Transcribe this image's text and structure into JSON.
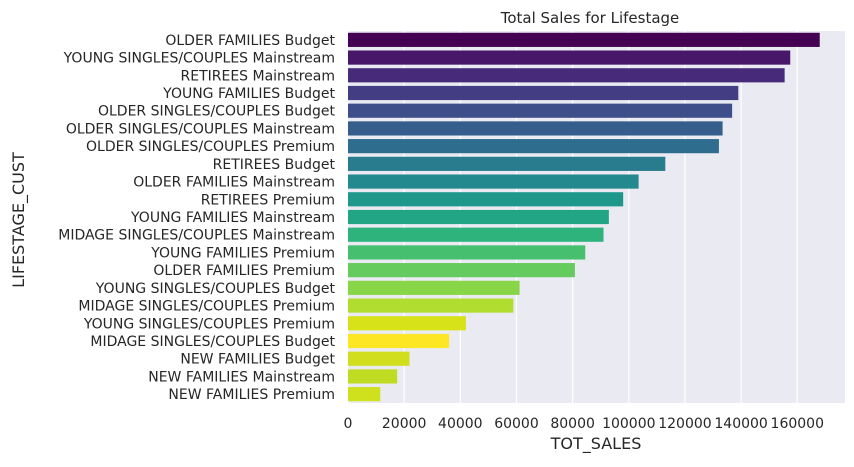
{
  "chart_data": {
    "type": "bar",
    "orientation": "horizontal",
    "title": "Total Sales for Lifestage",
    "xlabel": "TOT_SALES",
    "ylabel": "LIFESTAGE_CUST",
    "xlim": [
      0,
      177000
    ],
    "xticks": [
      0,
      20000,
      40000,
      60000,
      80000,
      100000,
      120000,
      140000,
      160000
    ],
    "grid": true,
    "background": "#eaeaf2",
    "categories": [
      "OLDER FAMILIES Budget",
      "YOUNG SINGLES/COUPLES Mainstream",
      "RETIREES Mainstream",
      "YOUNG FAMILIES Budget",
      "OLDER SINGLES/COUPLES Budget",
      "OLDER SINGLES/COUPLES Mainstream",
      "OLDER SINGLES/COUPLES Premium",
      "RETIREES Budget",
      "OLDER FAMILIES Mainstream",
      "RETIREES Premium",
      "YOUNG FAMILIES Mainstream",
      "MIDAGE SINGLES/COUPLES Mainstream",
      "YOUNG FAMILIES Premium",
      "OLDER FAMILIES Premium",
      "YOUNG SINGLES/COUPLES Budget",
      "MIDAGE SINGLES/COUPLES Premium",
      "YOUNG SINGLES/COUPLES Premium",
      "MIDAGE SINGLES/COUPLES Budget",
      "NEW FAMILIES Budget",
      "NEW FAMILIES Mainstream",
      "NEW FAMILIES Premium"
    ],
    "values": [
      168000,
      157500,
      155500,
      139000,
      136800,
      133400,
      132100,
      113000,
      103500,
      98000,
      92900,
      91000,
      84500,
      80800,
      61100,
      58900,
      42000,
      36000,
      21900,
      17500,
      11500
    ],
    "colors": [
      "#440154",
      "#481769",
      "#472a7a",
      "#433d84",
      "#3d4e8a",
      "#355e8d",
      "#2e6d8e",
      "#297b8e",
      "#23898e",
      "#1f978b",
      "#21a585",
      "#2eb37c",
      "#46c06f",
      "#65cb5e",
      "#89d548",
      "#b0dd2f",
      "#d8e219",
      "#fde725",
      "#d0de1e",
      "#bfdb22",
      "#cfe11c"
    ]
  }
}
